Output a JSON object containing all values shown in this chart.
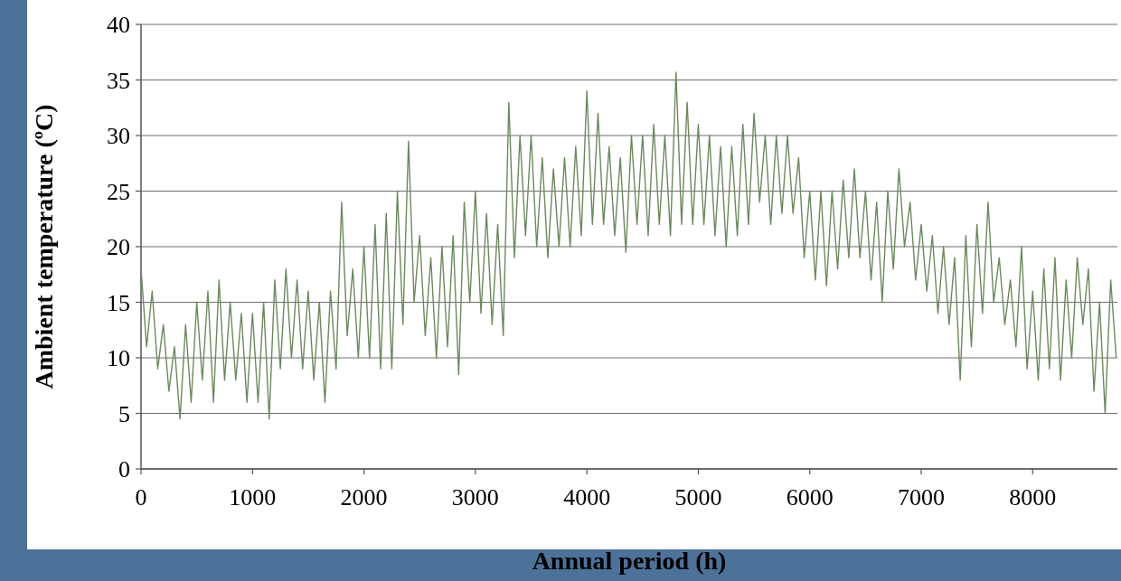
{
  "chart_data": {
    "type": "line",
    "xlabel": "Annual period (h)",
    "ylabel": "Ambient temperature (ºC)",
    "xlim": [
      0,
      8760
    ],
    "xticks": [
      0,
      1000,
      2000,
      3000,
      4000,
      5000,
      6000,
      7000,
      8000
    ],
    "ylim": [
      0,
      40
    ],
    "yticks": [
      0,
      5,
      10,
      15,
      20,
      25,
      30,
      35,
      40
    ],
    "grid": "y",
    "marker": "none",
    "line_style": "solid",
    "x": [
      0,
      50,
      100,
      150,
      200,
      250,
      300,
      350,
      400,
      450,
      500,
      550,
      600,
      650,
      700,
      750,
      800,
      850,
      900,
      950,
      1000,
      1050,
      1100,
      1150,
      1200,
      1250,
      1300,
      1350,
      1400,
      1450,
      1500,
      1550,
      1600,
      1650,
      1700,
      1750,
      1800,
      1850,
      1900,
      1950,
      2000,
      2050,
      2100,
      2150,
      2200,
      2250,
      2300,
      2350,
      2400,
      2450,
      2500,
      2550,
      2600,
      2650,
      2700,
      2750,
      2800,
      2850,
      2900,
      2950,
      3000,
      3050,
      3100,
      3150,
      3200,
      3250,
      3300,
      3350,
      3400,
      3450,
      3500,
      3550,
      3600,
      3650,
      3700,
      3750,
      3800,
      3850,
      3900,
      3950,
      4000,
      4050,
      4100,
      4150,
      4200,
      4250,
      4300,
      4350,
      4400,
      4450,
      4500,
      4550,
      4600,
      4650,
      4700,
      4750,
      4800,
      4850,
      4900,
      4950,
      5000,
      5050,
      5100,
      5150,
      5200,
      5250,
      5300,
      5350,
      5400,
      5450,
      5500,
      5550,
      5600,
      5650,
      5700,
      5750,
      5800,
      5850,
      5900,
      5950,
      6000,
      6050,
      6100,
      6150,
      6200,
      6250,
      6300,
      6350,
      6400,
      6450,
      6500,
      6550,
      6600,
      6650,
      6700,
      6750,
      6800,
      6850,
      6900,
      6950,
      7000,
      7050,
      7100,
      7150,
      7200,
      7250,
      7300,
      7350,
      7400,
      7450,
      7500,
      7550,
      7600,
      7650,
      7700,
      7750,
      7800,
      7850,
      7900,
      7950,
      8000,
      8050,
      8100,
      8150,
      8200,
      8250,
      8300,
      8350,
      8400,
      8450,
      8500,
      8550,
      8600,
      8650,
      8700,
      8750
    ],
    "series": [
      {
        "color": "#6b8a5c",
        "values": [
          18,
          11,
          16,
          9,
          13,
          7,
          11,
          4.5,
          13,
          6,
          15,
          8,
          16,
          6,
          17,
          8,
          15,
          8,
          14,
          6,
          14,
          6,
          15,
          4.5,
          17,
          9,
          18,
          10,
          17,
          9,
          16,
          8,
          15,
          6,
          16,
          9,
          24,
          12,
          18,
          10,
          20,
          10,
          22,
          9,
          23,
          9,
          25,
          13,
          29.5,
          15,
          21,
          12,
          19,
          10,
          20,
          11,
          21,
          8.5,
          24,
          15,
          25,
          14,
          23,
          13,
          22,
          12,
          33,
          19,
          30,
          21,
          30,
          20,
          28,
          19,
          27,
          20,
          28,
          20,
          29,
          21,
          34,
          22,
          32,
          22,
          29,
          21,
          28,
          19.5,
          30,
          22,
          30,
          21,
          31,
          22,
          30,
          21,
          35.7,
          22,
          33,
          22,
          31,
          22,
          30,
          21,
          29,
          20,
          29,
          21,
          31,
          22,
          32,
          24,
          30,
          22,
          30,
          23,
          30,
          23,
          28,
          19,
          25,
          17,
          25,
          16.5,
          25,
          18,
          26,
          19,
          27,
          19,
          25,
          17,
          24,
          15,
          25,
          18,
          27,
          20,
          24,
          17,
          22,
          16,
          21,
          14,
          20,
          13,
          19,
          8,
          21,
          11,
          22,
          14,
          24,
          15,
          19,
          13,
          17,
          11,
          20,
          9,
          16,
          8,
          18,
          9,
          19,
          8,
          17,
          10,
          19,
          13,
          18,
          7,
          15,
          5,
          17,
          10
        ]
      }
    ]
  }
}
